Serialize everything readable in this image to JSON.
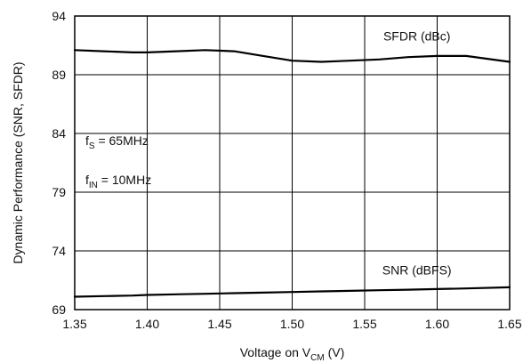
{
  "chart_data": {
    "type": "line",
    "x": [
      1.35,
      1.37,
      1.39,
      1.4,
      1.42,
      1.44,
      1.46,
      1.48,
      1.5,
      1.52,
      1.54,
      1.56,
      1.58,
      1.6,
      1.62,
      1.65
    ],
    "series": [
      {
        "name": "SFDR (dBc)",
        "values": [
          91.1,
          91.0,
          90.9,
          90.9,
          91.0,
          91.1,
          91.0,
          90.6,
          90.2,
          90.1,
          90.2,
          90.3,
          90.5,
          90.6,
          90.6,
          90.1
        ]
      },
      {
        "name": "SNR (dBFS)",
        "values": [
          70.1,
          70.15,
          70.2,
          70.25,
          70.3,
          70.35,
          70.4,
          70.45,
          70.5,
          70.55,
          70.6,
          70.65,
          70.7,
          70.75,
          70.8,
          70.9
        ]
      }
    ],
    "xlim": [
      1.35,
      1.65
    ],
    "ylim": [
      69,
      94
    ],
    "xticks": [
      "1.35",
      "1.40",
      "1.45",
      "1.50",
      "1.55",
      "1.60",
      "1.65"
    ],
    "yticks": [
      "69",
      "74",
      "79",
      "84",
      "89",
      "94"
    ],
    "xlabel": {
      "main": "Voltage on V",
      "sub": "CM",
      "tail": " (V)"
    },
    "ylabel": "Dynamic Performance (SNR, SFDR)",
    "grid": true,
    "annotations": [
      {
        "main": "f",
        "sub": "S",
        "tail": " = 65MHz"
      },
      {
        "main": "f",
        "sub": "IN",
        "tail": " = 10MHz"
      }
    ],
    "colors": {
      "line": "#000000",
      "grid": "#000000",
      "text": "#111111"
    }
  }
}
